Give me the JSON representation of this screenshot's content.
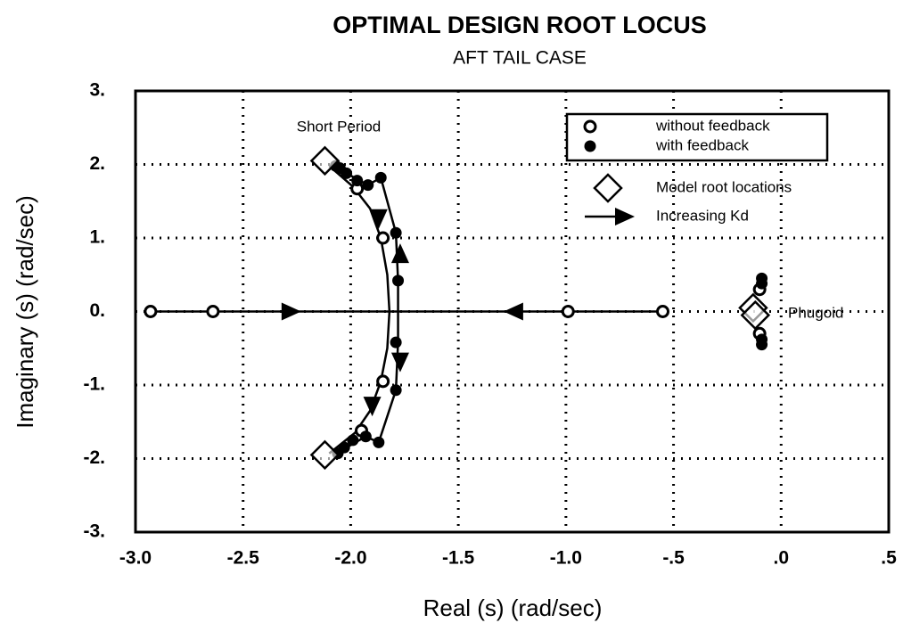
{
  "chart_data": {
    "type": "scatter",
    "title": "OPTIMAL DESIGN ROOT LOCUS",
    "subtitle": "AFT TAIL CASE",
    "xlabel": "Real (s)  (rad/sec)",
    "ylabel": "Imaginary (s)  (rad/sec)",
    "xlim": [
      -3.0,
      0.5
    ],
    "ylim": [
      -3,
      3
    ],
    "xticks": [
      {
        "value": -3.0,
        "label": "-3.0"
      },
      {
        "value": -2.5,
        "label": "-2.5"
      },
      {
        "value": -2.0,
        "label": "-2.0"
      },
      {
        "value": -1.5,
        "label": "-1.5"
      },
      {
        "value": -1.0,
        "label": "-1.0"
      },
      {
        "value": -0.5,
        "label": "-.5"
      },
      {
        "value": 0,
        "label": ".0"
      },
      {
        "value": 0.5,
        "label": ".5"
      }
    ],
    "yticks": [
      {
        "value": 3,
        "label": "3."
      },
      {
        "value": 2,
        "label": "2."
      },
      {
        "value": 1,
        "label": "1."
      },
      {
        "value": 0,
        "label": "0."
      },
      {
        "value": -1,
        "label": "-1."
      },
      {
        "value": -2,
        "label": "-2."
      },
      {
        "value": -3,
        "label": "-3."
      }
    ],
    "grid": true,
    "annotations": [
      "Short Period",
      "Phugoid"
    ],
    "lines": [
      {
        "color": "#000",
        "x": [
          -2.93,
          -0.55
        ],
        "y": [
          0,
          0
        ]
      },
      {
        "color": "#000",
        "x": [
          -2.1,
          -1.99,
          -1.91,
          -1.86,
          -1.83,
          -1.82,
          -1.83,
          -1.86,
          -1.91,
          -1.98,
          -2.1
        ],
        "y": [
          1.98,
          1.7,
          1.4,
          1.0,
          0.5,
          0,
          -0.5,
          -0.95,
          -1.35,
          -1.65,
          -1.93
        ]
      },
      {
        "color": "#000",
        "x": [
          -2.02,
          -1.92,
          -1.86,
          -1.79,
          -1.78,
          -1.78,
          -1.78,
          -1.79,
          -1.87,
          -1.93,
          -2.02
        ],
        "y": [
          1.88,
          1.72,
          1.82,
          1.07,
          0.42,
          0,
          -0.42,
          -1.07,
          -1.78,
          -1.7,
          -1.85
        ]
      }
    ],
    "series": [
      {
        "name": "without feedback",
        "marker": "open-circle",
        "color": "#000",
        "x": [
          -2.93,
          -2.64,
          -0.99,
          -0.55,
          -1.97,
          -1.85,
          -1.85,
          -1.95,
          -0.1,
          -0.1
        ],
        "y": [
          0,
          0,
          0,
          0,
          1.67,
          1.0,
          -0.95,
          -1.62,
          0.3,
          -0.3
        ]
      },
      {
        "name": "with feedback",
        "marker": "filled-circle",
        "color": "#000",
        "x": [
          -2.07,
          -2.05,
          -2.02,
          -1.97,
          -1.92,
          -1.86,
          -1.79,
          -1.78,
          -1.79,
          -1.79,
          -1.87,
          -1.93,
          -1.99,
          -2.03,
          -2.06,
          -0.09,
          -0.09,
          -0.09,
          -0.09
        ],
        "y": [
          1.98,
          1.95,
          1.88,
          1.78,
          1.72,
          1.82,
          1.07,
          0.42,
          -0.42,
          -1.07,
          -1.78,
          -1.7,
          -1.75,
          -1.85,
          -1.93,
          0.45,
          0.38,
          -0.38,
          -0.45
        ]
      },
      {
        "name": "Model root locations",
        "marker": "diamond",
        "color": "#000",
        "x": [
          -2.12,
          -2.12,
          -0.13,
          -0.12
        ],
        "y": [
          2.05,
          -1.95,
          0.05,
          -0.05
        ]
      },
      {
        "name": "Increasing Kd",
        "marker": "arrow",
        "color": "#000",
        "x": [
          -2.28,
          -1.24,
          -1.87,
          -1.77,
          -1.77,
          -1.9
        ],
        "y": [
          0,
          0,
          1.27,
          0.78,
          -0.68,
          -1.28
        ],
        "direction": [
          "right",
          "left",
          "down",
          "up",
          "down",
          "down"
        ]
      }
    ]
  }
}
